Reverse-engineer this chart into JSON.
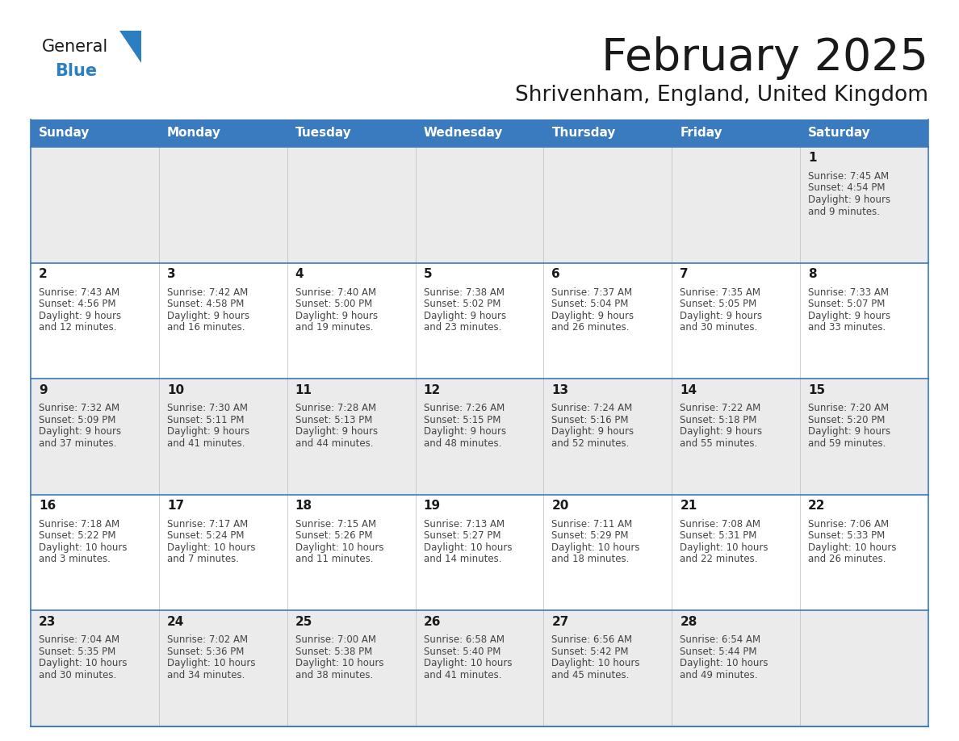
{
  "title": "February 2025",
  "subtitle": "Shrivenham, England, United Kingdom",
  "header_bg": "#3a7abf",
  "header_text": "#ffffff",
  "cell_bg_odd": "#ebebeb",
  "cell_bg_even": "#ffffff",
  "border_color": "#3a7abf",
  "day_headers": [
    "Sunday",
    "Monday",
    "Tuesday",
    "Wednesday",
    "Thursday",
    "Friday",
    "Saturday"
  ],
  "title_color": "#1a1a1a",
  "subtitle_color": "#1a1a1a",
  "cell_text_color": "#444444",
  "day_num_color": "#1a1a1a",
  "logo_general_color": "#1a1a1a",
  "logo_blue_color": "#2b7fc1",
  "weeks": [
    [
      {
        "day": null,
        "lines": []
      },
      {
        "day": null,
        "lines": []
      },
      {
        "day": null,
        "lines": []
      },
      {
        "day": null,
        "lines": []
      },
      {
        "day": null,
        "lines": []
      },
      {
        "day": null,
        "lines": []
      },
      {
        "day": "1",
        "lines": [
          "Sunrise: 7:45 AM",
          "Sunset: 4:54 PM",
          "Daylight: 9 hours",
          "and 9 minutes."
        ]
      }
    ],
    [
      {
        "day": "2",
        "lines": [
          "Sunrise: 7:43 AM",
          "Sunset: 4:56 PM",
          "Daylight: 9 hours",
          "and 12 minutes."
        ]
      },
      {
        "day": "3",
        "lines": [
          "Sunrise: 7:42 AM",
          "Sunset: 4:58 PM",
          "Daylight: 9 hours",
          "and 16 minutes."
        ]
      },
      {
        "day": "4",
        "lines": [
          "Sunrise: 7:40 AM",
          "Sunset: 5:00 PM",
          "Daylight: 9 hours",
          "and 19 minutes."
        ]
      },
      {
        "day": "5",
        "lines": [
          "Sunrise: 7:38 AM",
          "Sunset: 5:02 PM",
          "Daylight: 9 hours",
          "and 23 minutes."
        ]
      },
      {
        "day": "6",
        "lines": [
          "Sunrise: 7:37 AM",
          "Sunset: 5:04 PM",
          "Daylight: 9 hours",
          "and 26 minutes."
        ]
      },
      {
        "day": "7",
        "lines": [
          "Sunrise: 7:35 AM",
          "Sunset: 5:05 PM",
          "Daylight: 9 hours",
          "and 30 minutes."
        ]
      },
      {
        "day": "8",
        "lines": [
          "Sunrise: 7:33 AM",
          "Sunset: 5:07 PM",
          "Daylight: 9 hours",
          "and 33 minutes."
        ]
      }
    ],
    [
      {
        "day": "9",
        "lines": [
          "Sunrise: 7:32 AM",
          "Sunset: 5:09 PM",
          "Daylight: 9 hours",
          "and 37 minutes."
        ]
      },
      {
        "day": "10",
        "lines": [
          "Sunrise: 7:30 AM",
          "Sunset: 5:11 PM",
          "Daylight: 9 hours",
          "and 41 minutes."
        ]
      },
      {
        "day": "11",
        "lines": [
          "Sunrise: 7:28 AM",
          "Sunset: 5:13 PM",
          "Daylight: 9 hours",
          "and 44 minutes."
        ]
      },
      {
        "day": "12",
        "lines": [
          "Sunrise: 7:26 AM",
          "Sunset: 5:15 PM",
          "Daylight: 9 hours",
          "and 48 minutes."
        ]
      },
      {
        "day": "13",
        "lines": [
          "Sunrise: 7:24 AM",
          "Sunset: 5:16 PM",
          "Daylight: 9 hours",
          "and 52 minutes."
        ]
      },
      {
        "day": "14",
        "lines": [
          "Sunrise: 7:22 AM",
          "Sunset: 5:18 PM",
          "Daylight: 9 hours",
          "and 55 minutes."
        ]
      },
      {
        "day": "15",
        "lines": [
          "Sunrise: 7:20 AM",
          "Sunset: 5:20 PM",
          "Daylight: 9 hours",
          "and 59 minutes."
        ]
      }
    ],
    [
      {
        "day": "16",
        "lines": [
          "Sunrise: 7:18 AM",
          "Sunset: 5:22 PM",
          "Daylight: 10 hours",
          "and 3 minutes."
        ]
      },
      {
        "day": "17",
        "lines": [
          "Sunrise: 7:17 AM",
          "Sunset: 5:24 PM",
          "Daylight: 10 hours",
          "and 7 minutes."
        ]
      },
      {
        "day": "18",
        "lines": [
          "Sunrise: 7:15 AM",
          "Sunset: 5:26 PM",
          "Daylight: 10 hours",
          "and 11 minutes."
        ]
      },
      {
        "day": "19",
        "lines": [
          "Sunrise: 7:13 AM",
          "Sunset: 5:27 PM",
          "Daylight: 10 hours",
          "and 14 minutes."
        ]
      },
      {
        "day": "20",
        "lines": [
          "Sunrise: 7:11 AM",
          "Sunset: 5:29 PM",
          "Daylight: 10 hours",
          "and 18 minutes."
        ]
      },
      {
        "day": "21",
        "lines": [
          "Sunrise: 7:08 AM",
          "Sunset: 5:31 PM",
          "Daylight: 10 hours",
          "and 22 minutes."
        ]
      },
      {
        "day": "22",
        "lines": [
          "Sunrise: 7:06 AM",
          "Sunset: 5:33 PM",
          "Daylight: 10 hours",
          "and 26 minutes."
        ]
      }
    ],
    [
      {
        "day": "23",
        "lines": [
          "Sunrise: 7:04 AM",
          "Sunset: 5:35 PM",
          "Daylight: 10 hours",
          "and 30 minutes."
        ]
      },
      {
        "day": "24",
        "lines": [
          "Sunrise: 7:02 AM",
          "Sunset: 5:36 PM",
          "Daylight: 10 hours",
          "and 34 minutes."
        ]
      },
      {
        "day": "25",
        "lines": [
          "Sunrise: 7:00 AM",
          "Sunset: 5:38 PM",
          "Daylight: 10 hours",
          "and 38 minutes."
        ]
      },
      {
        "day": "26",
        "lines": [
          "Sunrise: 6:58 AM",
          "Sunset: 5:40 PM",
          "Daylight: 10 hours",
          "and 41 minutes."
        ]
      },
      {
        "day": "27",
        "lines": [
          "Sunrise: 6:56 AM",
          "Sunset: 5:42 PM",
          "Daylight: 10 hours",
          "and 45 minutes."
        ]
      },
      {
        "day": "28",
        "lines": [
          "Sunrise: 6:54 AM",
          "Sunset: 5:44 PM",
          "Daylight: 10 hours",
          "and 49 minutes."
        ]
      },
      {
        "day": null,
        "lines": []
      }
    ]
  ],
  "figsize": [
    11.88,
    9.18
  ],
  "dpi": 100
}
